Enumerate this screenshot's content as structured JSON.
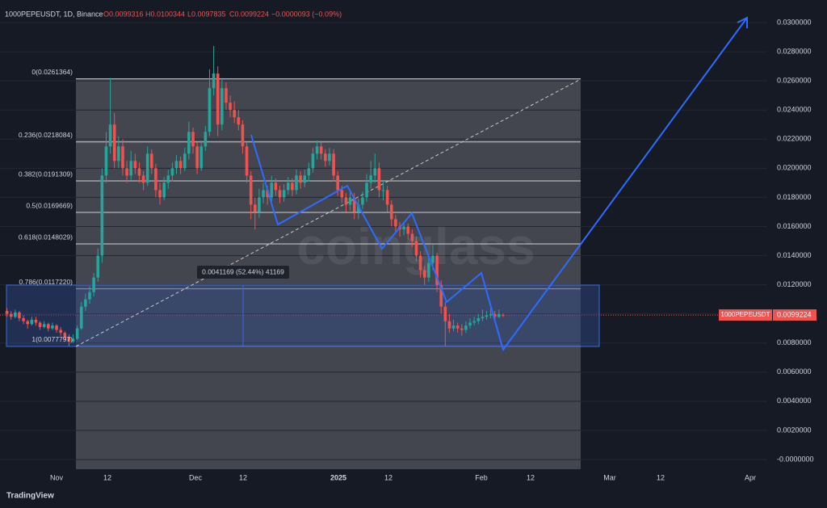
{
  "chart_data": {
    "type": "candlestick",
    "header": {
      "symbol": "1000PEPEUSDT, 1D, Binance",
      "o": "O0.0099316",
      "h": "H0.0100344",
      "l": "L0.0097835",
      "c": "C0.0099224",
      "change": "−0.0000093 (−0.09%)"
    },
    "x_labels": [
      "Nov",
      "12",
      "Dec",
      "12",
      "2025",
      "12",
      "Feb",
      "12",
      "Mar",
      "12",
      "Apr"
    ],
    "ylim": [
      0,
      0.03
    ],
    "yticks": [
      {
        "value": 0,
        "label": "-0.0000000"
      },
      {
        "value": 0.002,
        "label": "0.0020000"
      },
      {
        "value": 0.004,
        "label": "0.0040000"
      },
      {
        "value": 0.006,
        "label": "0.0060000"
      },
      {
        "value": 0.008,
        "label": "0.0080000"
      },
      {
        "value": 0.01,
        "label": "0.0100000"
      },
      {
        "value": 0.012,
        "label": "0.0120000"
      },
      {
        "value": 0.014,
        "label": "0.0140000"
      },
      {
        "value": 0.016,
        "label": "0.0160000"
      },
      {
        "value": 0.018,
        "label": "0.0180000"
      },
      {
        "value": 0.02,
        "label": "0.0200000"
      },
      {
        "value": 0.022,
        "label": "0.0220000"
      },
      {
        "value": 0.024,
        "label": "0.0240000"
      },
      {
        "value": 0.026,
        "label": "0.0260000"
      },
      {
        "value": 0.028,
        "label": "0.0280000"
      },
      {
        "value": 0.03,
        "label": "0.0300000"
      }
    ],
    "grid": true,
    "up_color": "#26a69a",
    "down_color": "#ef5350",
    "fib_levels": [
      {
        "value": 0.0261364,
        "label": "0(0.0261364)"
      },
      {
        "value": 0.0218084,
        "label": "0.236(0.0218084)"
      },
      {
        "value": 0.0191309,
        "label": "0.382(0.0191309)"
      },
      {
        "value": 0.0169669,
        "label": "0.5(0.0169669)"
      },
      {
        "value": 0.0148029,
        "label": "0.618(0.0148029)"
      },
      {
        "value": 0.011722,
        "label": "0.786(0.0117220)"
      },
      {
        "value": 0.0077797,
        "label": "1(0.0077797)"
      }
    ],
    "measure_label": "0.0041169 (52.44%) 41169",
    "last_price": {
      "name": "1000PEPEUSDT",
      "value": 0.0099224,
      "label": "0.0099224"
    },
    "watermark": "coinglass",
    "footer": "TradingView",
    "ohlc": [
      [
        0.0102,
        0.0104,
        0.0098,
        0.01
      ],
      [
        0.01,
        0.0102,
        0.0096,
        0.0098
      ],
      [
        0.0098,
        0.0103,
        0.0097,
        0.0101
      ],
      [
        0.0101,
        0.0102,
        0.0095,
        0.0097
      ],
      [
        0.0097,
        0.0099,
        0.0093,
        0.0095
      ],
      [
        0.0095,
        0.0096,
        0.009,
        0.0093
      ],
      [
        0.0093,
        0.0098,
        0.0092,
        0.0096
      ],
      [
        0.0096,
        0.0098,
        0.0092,
        0.0094
      ],
      [
        0.0094,
        0.0095,
        0.0089,
        0.0091
      ],
      [
        0.0091,
        0.0095,
        0.009,
        0.0093
      ],
      [
        0.0093,
        0.0094,
        0.0088,
        0.009
      ],
      [
        0.009,
        0.0094,
        0.0089,
        0.0092
      ],
      [
        0.0092,
        0.0093,
        0.0087,
        0.0089
      ],
      [
        0.0089,
        0.0091,
        0.0085,
        0.0087
      ],
      [
        0.0087,
        0.0088,
        0.0082,
        0.0084
      ],
      [
        0.0084,
        0.0086,
        0.0078,
        0.0081
      ],
      [
        0.0081,
        0.0086,
        0.008,
        0.0083
      ],
      [
        0.0083,
        0.0092,
        0.0082,
        0.009
      ],
      [
        0.009,
        0.0108,
        0.0089,
        0.0105
      ],
      [
        0.0105,
        0.0114,
        0.0102,
        0.011
      ],
      [
        0.011,
        0.0119,
        0.0107,
        0.0115
      ],
      [
        0.0115,
        0.0128,
        0.0112,
        0.0125
      ],
      [
        0.0125,
        0.0145,
        0.0122,
        0.014
      ],
      [
        0.014,
        0.02,
        0.0135,
        0.0195
      ],
      [
        0.0195,
        0.0225,
        0.019,
        0.0215
      ],
      [
        0.0215,
        0.0262,
        0.021,
        0.023
      ],
      [
        0.023,
        0.0238,
        0.02,
        0.0205
      ],
      [
        0.0205,
        0.0222,
        0.02,
        0.0215
      ],
      [
        0.0215,
        0.022,
        0.0195,
        0.02
      ],
      [
        0.02,
        0.0205,
        0.019,
        0.0195
      ],
      [
        0.0195,
        0.0212,
        0.0192,
        0.0205
      ],
      [
        0.0205,
        0.021,
        0.0196,
        0.02
      ],
      [
        0.02,
        0.0204,
        0.019,
        0.0195
      ],
      [
        0.0195,
        0.0198,
        0.0185,
        0.019
      ],
      [
        0.019,
        0.0215,
        0.0188,
        0.021
      ],
      [
        0.021,
        0.0213,
        0.0196,
        0.02
      ],
      [
        0.02,
        0.0203,
        0.018,
        0.0185
      ],
      [
        0.0185,
        0.019,
        0.0175,
        0.018
      ],
      [
        0.018,
        0.0194,
        0.0178,
        0.019
      ],
      [
        0.019,
        0.0199,
        0.0186,
        0.0195
      ],
      [
        0.0195,
        0.0204,
        0.0191,
        0.02
      ],
      [
        0.02,
        0.0209,
        0.0196,
        0.0205
      ],
      [
        0.0205,
        0.0208,
        0.0196,
        0.02
      ],
      [
        0.02,
        0.0214,
        0.0198,
        0.021
      ],
      [
        0.021,
        0.0232,
        0.0206,
        0.0225
      ],
      [
        0.0225,
        0.0228,
        0.021,
        0.0215
      ],
      [
        0.0215,
        0.0218,
        0.0196,
        0.02
      ],
      [
        0.02,
        0.0219,
        0.0198,
        0.0215
      ],
      [
        0.0215,
        0.0229,
        0.0212,
        0.0225
      ],
      [
        0.0225,
        0.0268,
        0.0222,
        0.0255
      ],
      [
        0.0255,
        0.0284,
        0.025,
        0.0265
      ],
      [
        0.0265,
        0.027,
        0.0222,
        0.023
      ],
      [
        0.023,
        0.0262,
        0.0226,
        0.0255
      ],
      [
        0.0255,
        0.0259,
        0.024,
        0.0245
      ],
      [
        0.0245,
        0.025,
        0.0235,
        0.024
      ],
      [
        0.024,
        0.0246,
        0.0231,
        0.0235
      ],
      [
        0.0235,
        0.024,
        0.0226,
        0.023
      ],
      [
        0.023,
        0.0233,
        0.021,
        0.0215
      ],
      [
        0.0215,
        0.0218,
        0.019,
        0.0195
      ],
      [
        0.0195,
        0.0198,
        0.0165,
        0.0175
      ],
      [
        0.0175,
        0.018,
        0.0158,
        0.017
      ],
      [
        0.017,
        0.0186,
        0.0166,
        0.018
      ],
      [
        0.018,
        0.019,
        0.0176,
        0.0185
      ],
      [
        0.0185,
        0.0188,
        0.0175,
        0.018
      ],
      [
        0.018,
        0.0195,
        0.0177,
        0.019
      ],
      [
        0.019,
        0.0193,
        0.0181,
        0.0185
      ],
      [
        0.0185,
        0.0188,
        0.0176,
        0.018
      ],
      [
        0.018,
        0.0189,
        0.0177,
        0.0185
      ],
      [
        0.0185,
        0.0194,
        0.0182,
        0.019
      ],
      [
        0.019,
        0.0193,
        0.0181,
        0.0185
      ],
      [
        0.0185,
        0.0199,
        0.0182,
        0.0195
      ],
      [
        0.0195,
        0.0198,
        0.0186,
        0.019
      ],
      [
        0.019,
        0.0199,
        0.0187,
        0.0195
      ],
      [
        0.0195,
        0.0204,
        0.0191,
        0.02
      ],
      [
        0.02,
        0.0214,
        0.0197,
        0.021
      ],
      [
        0.021,
        0.0219,
        0.0206,
        0.0215
      ],
      [
        0.0215,
        0.0218,
        0.0206,
        0.021
      ],
      [
        0.021,
        0.0213,
        0.0201,
        0.0205
      ],
      [
        0.0205,
        0.0214,
        0.0202,
        0.021
      ],
      [
        0.021,
        0.0213,
        0.0191,
        0.0195
      ],
      [
        0.0195,
        0.0198,
        0.0181,
        0.0185
      ],
      [
        0.0185,
        0.0188,
        0.0176,
        0.018
      ],
      [
        0.018,
        0.0183,
        0.017,
        0.0175
      ],
      [
        0.0175,
        0.0184,
        0.0171,
        0.018
      ],
      [
        0.018,
        0.0183,
        0.0165,
        0.017
      ],
      [
        0.017,
        0.0179,
        0.0165,
        0.0175
      ],
      [
        0.0175,
        0.0184,
        0.0172,
        0.018
      ],
      [
        0.018,
        0.0196,
        0.0177,
        0.019
      ],
      [
        0.019,
        0.0205,
        0.0186,
        0.0195
      ],
      [
        0.0195,
        0.021,
        0.019,
        0.02
      ],
      [
        0.02,
        0.0204,
        0.018,
        0.0185
      ],
      [
        0.0185,
        0.0192,
        0.0178,
        0.0185
      ],
      [
        0.0185,
        0.0188,
        0.017,
        0.0175
      ],
      [
        0.0175,
        0.0178,
        0.016,
        0.0165
      ],
      [
        0.0165,
        0.0168,
        0.0155,
        0.016
      ],
      [
        0.016,
        0.0163,
        0.0153,
        0.0158
      ],
      [
        0.0158,
        0.0163,
        0.0154,
        0.016
      ],
      [
        0.016,
        0.0162,
        0.0151,
        0.0155
      ],
      [
        0.0155,
        0.0158,
        0.0146,
        0.015
      ],
      [
        0.015,
        0.0153,
        0.0136,
        0.014
      ],
      [
        0.014,
        0.0143,
        0.0125,
        0.013
      ],
      [
        0.013,
        0.0133,
        0.012,
        0.0125
      ],
      [
        0.0125,
        0.014,
        0.0122,
        0.0135
      ],
      [
        0.0135,
        0.0148,
        0.013,
        0.014
      ],
      [
        0.014,
        0.0142,
        0.0115,
        0.012
      ],
      [
        0.012,
        0.0123,
        0.01,
        0.0105
      ],
      [
        0.0105,
        0.0108,
        0.0078,
        0.0095
      ],
      [
        0.0095,
        0.01,
        0.0087,
        0.009
      ],
      [
        0.009,
        0.0096,
        0.0088,
        0.0092
      ],
      [
        0.0092,
        0.0094,
        0.0087,
        0.009
      ],
      [
        0.009,
        0.0093,
        0.0085,
        0.0089
      ],
      [
        0.0089,
        0.0095,
        0.0087,
        0.0092
      ],
      [
        0.0092,
        0.0097,
        0.009,
        0.0094
      ],
      [
        0.0094,
        0.0098,
        0.0092,
        0.0095
      ],
      [
        0.0095,
        0.01,
        0.0093,
        0.0097
      ],
      [
        0.0097,
        0.0103,
        0.0095,
        0.0098
      ],
      [
        0.0098,
        0.0102,
        0.0096,
        0.0099
      ],
      [
        0.0099,
        0.0104,
        0.0097,
        0.01
      ],
      [
        0.01,
        0.0102,
        0.0096,
        0.0098
      ],
      [
        0.0098,
        0.0103,
        0.0097,
        0.01
      ],
      [
        0.0099316,
        0.0100344,
        0.0097835,
        0.0099224
      ]
    ]
  }
}
